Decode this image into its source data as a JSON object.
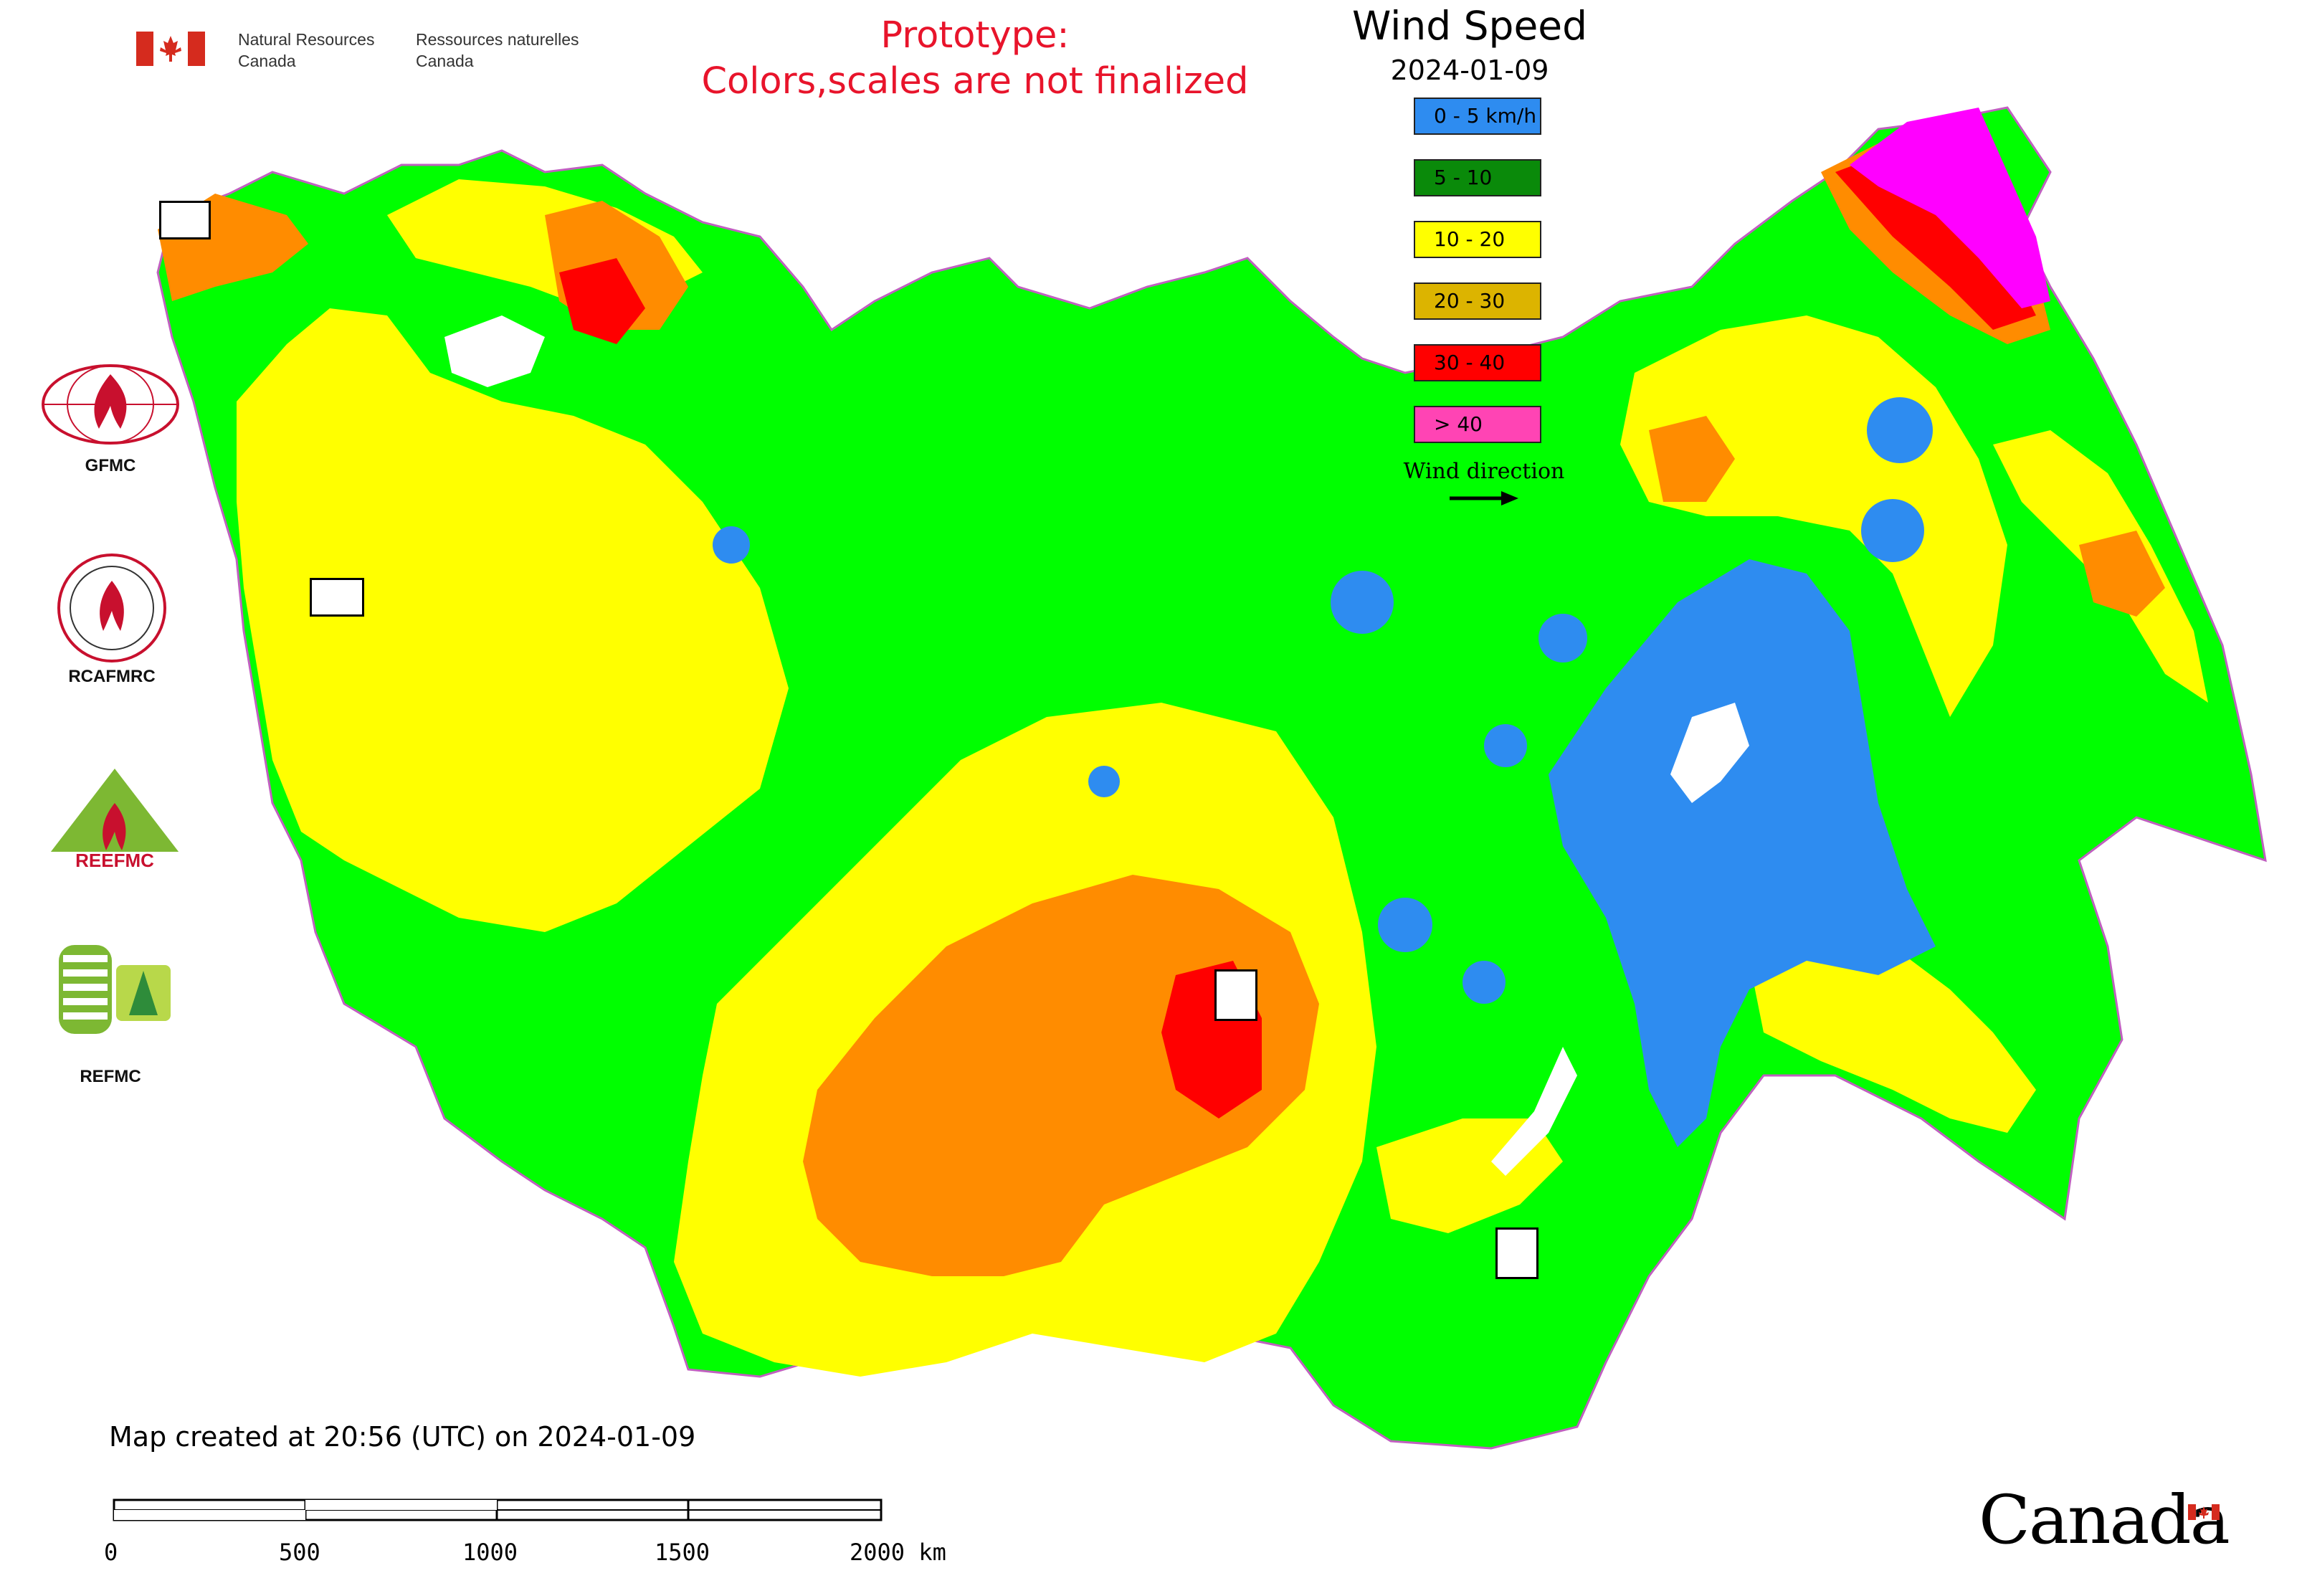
{
  "header": {
    "signature_en": [
      "Natural Resources",
      "Canada"
    ],
    "signature_fr": [
      "Ressources naturelles",
      "Canada"
    ],
    "prototype_line1": "Prototype:",
    "prototype_line2": "Colors,scales are not finalized"
  },
  "legend": {
    "title": "Wind Speed",
    "date": "2024-01-09",
    "items": [
      {
        "label": "0 - 5 km/h",
        "color": "#2e8cf0"
      },
      {
        "label": "5 - 10",
        "color": "#0a8a0a"
      },
      {
        "label": "10 - 20",
        "color": "#ffff00"
      },
      {
        "label": "20 - 30",
        "color": "#dcb400"
      },
      {
        "label": "30 - 40",
        "color": "#ff0000"
      },
      {
        "label": "> 40",
        "color": "#ff44b4"
      }
    ],
    "wind_direction_label": "Wind direction"
  },
  "sidebar_logos": [
    {
      "label": "GFMC",
      "icon": "gfmc-logo-icon"
    },
    {
      "label": "RCAFMRC",
      "icon": "rcafmrc-logo-icon"
    },
    {
      "label": "",
      "icon": "reefmc-logo-icon",
      "wordmark": "REEFMC"
    },
    {
      "label": "REFMC",
      "icon": "refmc-logo-icon"
    }
  ],
  "map": {
    "region": "Russia",
    "colors": {
      "calm": "#2e8cf0",
      "light": "#00ff00",
      "moderate": "#ffff00",
      "strong": "#ff8c00",
      "very_strong": "#ff0000",
      "extreme": "#ff00ff",
      "border": "#c060c0"
    }
  },
  "footer": {
    "created_text": "Map created at 20:56 (UTC) on 2024-01-09",
    "scale_labels": [
      "0",
      "500",
      "1000",
      "1500",
      "2000 km"
    ]
  },
  "wordmark": "Canada"
}
